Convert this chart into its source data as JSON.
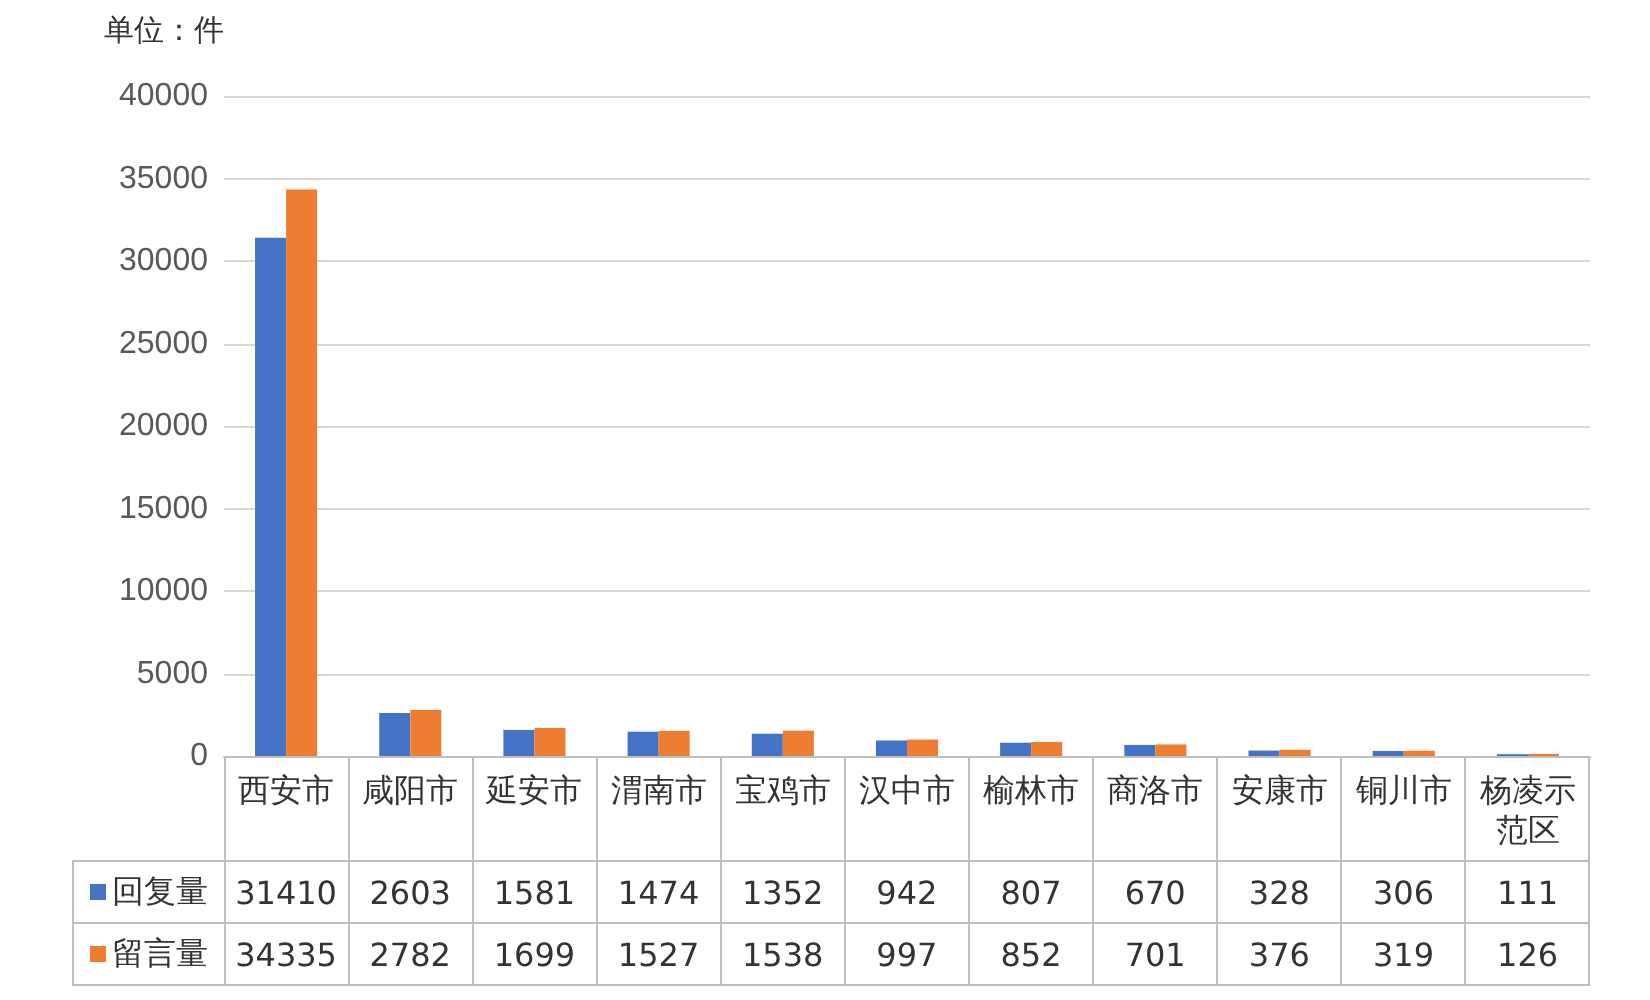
{
  "chart_data": {
    "type": "bar",
    "ylabel": "单位：件",
    "categories": [
      "西安市",
      "咸阳市",
      "延安市",
      "渭南市",
      "宝鸡市",
      "汉中市",
      "榆林市",
      "商洛市",
      "安康市",
      "铜川市",
      "杨凌示范区"
    ],
    "series": [
      {
        "name": "回复量",
        "color": "#4472c4",
        "values": [
          31410,
          2603,
          1581,
          1474,
          1352,
          942,
          807,
          670,
          328,
          306,
          111
        ]
      },
      {
        "name": "留言量",
        "color": "#ed7d31",
        "values": [
          34335,
          2782,
          1699,
          1527,
          1538,
          997,
          852,
          701,
          376,
          319,
          126
        ]
      }
    ],
    "ylim": [
      0,
      40000
    ],
    "yticks": [
      0,
      5000,
      10000,
      15000,
      20000,
      25000,
      30000,
      35000,
      40000
    ],
    "grid": "y",
    "legend": "bottom",
    "data_labels": true
  }
}
